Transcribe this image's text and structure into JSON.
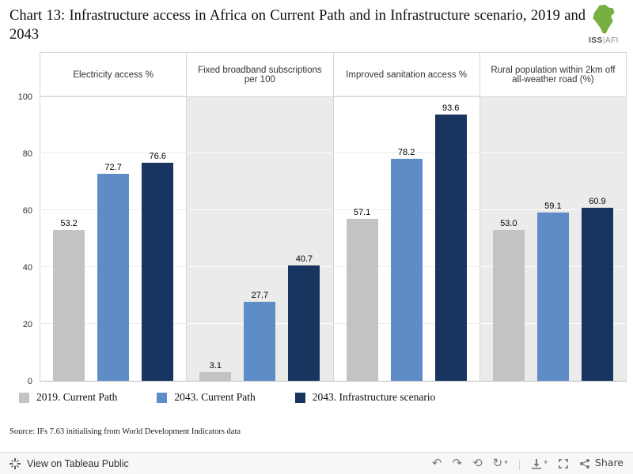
{
  "title": "Chart 13: Infrastructure access in Africa on Current Path and in Infrastructure scenario, 2019 and 2043",
  "logo": {
    "org": "ISS",
    "divider": "|",
    "unit": "AFI",
    "accent_color": "#76b043"
  },
  "chart_data": {
    "type": "bar",
    "panels": [
      {
        "label": "Electricity access %",
        "values": [
          53.2,
          72.7,
          76.6
        ],
        "display": [
          "53.2",
          "72.7",
          "76.6"
        ]
      },
      {
        "label": "Fixed broadband subscriptions per 100",
        "values": [
          3.1,
          27.7,
          40.7
        ],
        "display": [
          "3.1",
          "27.7",
          "40.7"
        ]
      },
      {
        "label": "Improved sanitation access %",
        "values": [
          57.1,
          78.2,
          93.6
        ],
        "display": [
          "57.1",
          "78.2",
          "93.6"
        ]
      },
      {
        "label": "Rural population within 2km off all-weather road (%)",
        "values": [
          53.0,
          59.1,
          60.9
        ],
        "display": [
          "53.0",
          "59.1",
          "60.9"
        ]
      }
    ],
    "series": [
      {
        "name": "2019. Current Path",
        "color": "#c3c3c3"
      },
      {
        "name": "2043. Current Path",
        "color": "#5d8cc7"
      },
      {
        "name": "2043. Infrastructure scenario",
        "color": "#17355e"
      }
    ],
    "ylim": [
      0,
      100
    ],
    "yticks": [
      0,
      20,
      40,
      60,
      80,
      100
    ],
    "grid": true,
    "legend_position": "bottom"
  },
  "source": "Source: IFs 7.63 initialising from World Development Indicators data",
  "footer": {
    "view_label": "View on Tableau Public",
    "share_label": "Share",
    "icons": [
      {
        "name": "undo-icon",
        "glyph": "↶"
      },
      {
        "name": "redo-icon",
        "glyph": "↷"
      },
      {
        "name": "reset-icon",
        "glyph": "⟲"
      },
      {
        "name": "refresh-icon",
        "glyph": "↻"
      },
      {
        "name": "caret-down-icon",
        "glyph": "▾"
      },
      {
        "name": "download-icon"
      },
      {
        "name": "fullscreen-icon"
      },
      {
        "name": "share-icon"
      }
    ]
  }
}
